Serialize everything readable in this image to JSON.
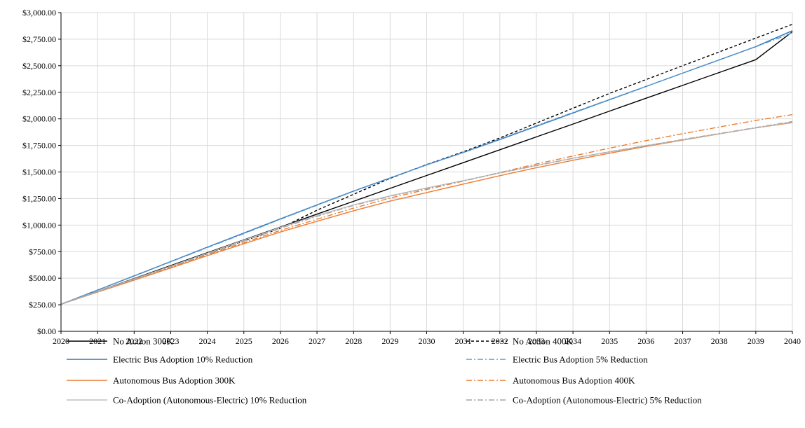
{
  "chart_data": {
    "type": "line",
    "title": "",
    "xlabel": "",
    "ylabel": "",
    "x": [
      2020,
      2021,
      2022,
      2023,
      2024,
      2025,
      2026,
      2027,
      2028,
      2029,
      2030,
      2031,
      2032,
      2033,
      2034,
      2035,
      2036,
      2037,
      2038,
      2039,
      2040
    ],
    "xlim": [
      2020,
      2040
    ],
    "ylim": [
      0,
      3000
    ],
    "y_ticks": [
      0,
      250,
      500,
      750,
      1000,
      1250,
      1500,
      1750,
      2000,
      2250,
      2500,
      2750,
      3000
    ],
    "y_tick_labels": [
      "$0.00",
      "$250.00",
      "$500.00",
      "$750.00",
      "$1,000.00",
      "$1,250.00",
      "$1,500.00",
      "$1,750.00",
      "$2,000.00",
      "$2,250.00",
      "$2,500.00",
      "$2,750.00",
      "$3,000.00"
    ],
    "x_tick_labels": [
      "2020",
      "2021",
      "2022",
      "2023",
      "2024",
      "2025",
      "2026",
      "2027",
      "2028",
      "2029",
      "2030",
      "2031",
      "2032",
      "2033",
      "2034",
      "2035",
      "2036",
      "2037",
      "2038",
      "2039",
      "2040"
    ],
    "grid": true,
    "legend_position": "bottom",
    "series": [
      {
        "name": "No Action 300K",
        "color": "#000000",
        "dash": "solid",
        "values": [
          255,
          376,
          497,
          619,
          740,
          861,
          982,
          1103,
          1224,
          1346,
          1467,
          1588,
          1709,
          1830,
          1951,
          2073,
          2194,
          2315,
          2436,
          2557,
          2820
        ]
      },
      {
        "name": "No Action 400K",
        "color": "#000000",
        "dash": "dash",
        "values": [
          255,
          374,
          493,
          612,
          731,
          850,
          970,
          1140,
          1290,
          1440,
          1570,
          1690,
          1820,
          1960,
          2100,
          2240,
          2370,
          2500,
          2630,
          2760,
          2890
        ]
      },
      {
        "name": "Electric Bus  Adoption  10% Reduction",
        "color": "#2e75b6",
        "dash": "solid",
        "values": [
          255,
          389,
          522,
          657,
          792,
          925,
          1059,
          1190,
          1320,
          1444,
          1567,
          1683,
          1805,
          1930,
          2055,
          2180,
          2305,
          2430,
          2555,
          2680,
          2830
        ]
      },
      {
        "name": "Electric Bus  Adoption  5% Reduction",
        "color": "#5b9bd5",
        "dash": "dashdot",
        "values": [
          255,
          388,
          520,
          654,
          788,
          920,
          1054,
          1186,
          1318,
          1442,
          1567,
          1685,
          1810,
          1936,
          2060,
          2183,
          2305,
          2430,
          2554,
          2678,
          2810
        ]
      },
      {
        "name": "Autonomous Bus Adoption 300K",
        "color": "#ed7d31",
        "dash": "solid",
        "values": [
          255,
          370,
          482,
          596,
          712,
          824,
          935,
          1036,
          1135,
          1226,
          1306,
          1386,
          1465,
          1540,
          1610,
          1677,
          1740,
          1800,
          1858,
          1915,
          1965
        ]
      },
      {
        "name": "Autonomous Bus Adoption 400K",
        "color": "#ed7d31",
        "dash": "dashdot",
        "values": [
          255,
          372,
          488,
          604,
          720,
          835,
          950,
          1055,
          1160,
          1255,
          1335,
          1414,
          1495,
          1575,
          1650,
          1724,
          1795,
          1860,
          1923,
          1985,
          2040
        ]
      },
      {
        "name": "Co-Adoption (Autonomous-Electric) 10% Reduction",
        "color": "#bfbfbf",
        "dash": "solid",
        "values": [
          255,
          375,
          493,
          613,
          735,
          858,
          978,
          1090,
          1190,
          1276,
          1350,
          1418,
          1492,
          1562,
          1630,
          1690,
          1747,
          1803,
          1860,
          1915,
          1970
        ]
      },
      {
        "name": "Co-Adoption (Autonomous-Electric) 5% Reduction",
        "color": "#a6a6a6",
        "dash": "dashdot",
        "values": [
          255,
          373,
          490,
          609,
          728,
          850,
          970,
          1082,
          1185,
          1272,
          1346,
          1416,
          1490,
          1560,
          1628,
          1690,
          1748,
          1806,
          1862,
          1918,
          1975
        ]
      }
    ]
  }
}
